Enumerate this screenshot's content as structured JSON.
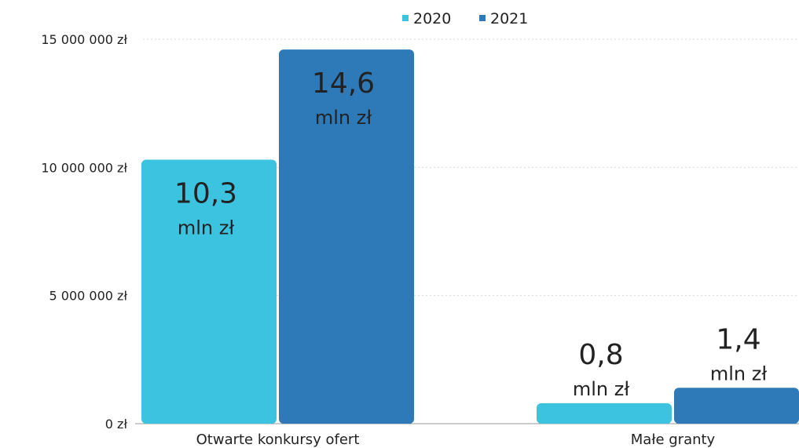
{
  "chart_data": {
    "type": "bar",
    "title": "",
    "xlabel": "",
    "ylabel": "",
    "ylim": [
      0,
      15000000
    ],
    "y_ticks": [
      {
        "value": 0,
        "label": "0 zł"
      },
      {
        "value": 5000000,
        "label": "5 000 000 zł"
      },
      {
        "value": 10000000,
        "label": "10 000 000 zł"
      },
      {
        "value": 15000000,
        "label": "15 000 000 zł"
      }
    ],
    "grid": true,
    "legend_position": "top-center",
    "categories": [
      "Otwarte konkursy ofert",
      "Małe granty"
    ],
    "series": [
      {
        "name": "2020",
        "color": "#3cc3e0",
        "values": [
          10300000,
          800000
        ],
        "labels": [
          "10,3",
          "0,8"
        ]
      },
      {
        "name": "2021",
        "color": "#2e7ab8",
        "values": [
          14600000,
          1400000
        ],
        "labels": [
          "14,6",
          "1,4"
        ]
      }
    ],
    "value_unit": "mln zł"
  }
}
